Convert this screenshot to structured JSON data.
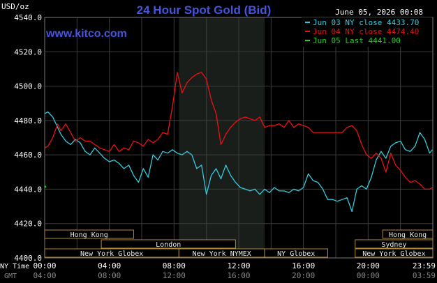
{
  "header": {
    "title": "24 Hour Spot Gold (Bid)",
    "date_stamp": "June 05, 2026 00:08",
    "unit": "USD/oz",
    "watermark": "www.kitco.com"
  },
  "footer": {
    "ny_label": "NY Time",
    "gmt_label": "GMT"
  },
  "colors": {
    "background": "#000000",
    "plot_background": "#000000",
    "night_band": "#1a1e1a",
    "grid": "#3c3c3c",
    "text": "#ffffff",
    "title": "#4455dd",
    "watermark": "#4455dd",
    "session_border": "#b08a3c",
    "session_text": "#e8e8e8",
    "gmt_text": "#888888",
    "series_jun03": "#33ccdd",
    "series_jun04": "#ee1111",
    "series_jun05": "#22cc22"
  },
  "chart_data": {
    "type": "line",
    "title": "24 Hour Spot Gold (Bid)",
    "ylabel": "USD/oz",
    "xlabel": "",
    "ylim": [
      4400,
      4540
    ],
    "yticks": [
      "4400.0",
      "4420.0",
      "4440.0",
      "4460.0",
      "4480.0",
      "4500.0",
      "4520.0",
      "4540.0"
    ],
    "xlim": [
      0,
      24
    ],
    "xticks": [
      {
        "hour": 0,
        "ny": "00:00",
        "gmt": "04:00"
      },
      {
        "hour": 4,
        "ny": "04:00",
        "gmt": "08:00"
      },
      {
        "hour": 8,
        "ny": "08:00",
        "gmt": "12:00"
      },
      {
        "hour": 12,
        "ny": "12:00",
        "gmt": "16:00"
      },
      {
        "hour": 16,
        "ny": "16:00",
        "gmt": "20:00"
      },
      {
        "hour": 20,
        "ny": "20:00",
        "gmt": "00:00"
      },
      {
        "hour": 23.98,
        "ny": "23:59",
        "gmt": "03:59"
      }
    ],
    "grid": true,
    "legend_position": "top-right",
    "shaded_range": [
      8.3,
      13.6
    ],
    "sessions": [
      {
        "name": "Hong Kong",
        "start": 0,
        "end": 5.5,
        "row": 0
      },
      {
        "name": "Hong Kong",
        "start": 20.9,
        "end": 24,
        "row": 0
      },
      {
        "name": "Sydney",
        "start": 19.2,
        "end": 24,
        "row": 1
      },
      {
        "name": "London",
        "start": 3.5,
        "end": 11.8,
        "row": 1
      },
      {
        "name": "New York Globex",
        "start": 0,
        "end": 8.3,
        "row": 2
      },
      {
        "name": "New York NYMEX",
        "start": 8.3,
        "end": 13.6,
        "row": 2
      },
      {
        "name": "NY Globex",
        "start": 13.6,
        "end": 17.5,
        "row": 2
      },
      {
        "name": "New York Globex",
        "start": 19.2,
        "end": 24,
        "row": 2
      }
    ],
    "series": [
      {
        "name": "Jun 03 NY close 4433.70",
        "color": "#33ccdd",
        "x": [
          0,
          0.2,
          0.5,
          0.8,
          1.0,
          1.3,
          1.6,
          1.9,
          2.2,
          2.5,
          2.8,
          3.1,
          3.4,
          3.7,
          4.0,
          4.3,
          4.6,
          4.9,
          5.2,
          5.5,
          5.8,
          6.1,
          6.4,
          6.7,
          7.0,
          7.3,
          7.6,
          7.9,
          8.2,
          8.5,
          8.8,
          9.1,
          9.4,
          9.7,
          10.0,
          10.3,
          10.6,
          10.9,
          11.2,
          11.5,
          11.8,
          12.1,
          12.4,
          12.7,
          13.0,
          13.3,
          13.6,
          13.9,
          14.2,
          14.5,
          14.8,
          15.1,
          15.4,
          15.7,
          16.0,
          16.3,
          16.6,
          16.9,
          17.2,
          17.5,
          17.8,
          18.1,
          18.4,
          18.7,
          19.0,
          19.3,
          19.6,
          19.9,
          20.2,
          20.5,
          20.8,
          21.1,
          21.4,
          21.7,
          22.0,
          22.3,
          22.6,
          22.9,
          23.2,
          23.5,
          23.8,
          23.98
        ],
        "y": [
          4484,
          4485,
          4482,
          4476,
          4472,
          4468,
          4466,
          4469,
          4467,
          4462,
          4460,
          4464,
          4461,
          4458,
          4456,
          4457,
          4455,
          4452,
          4454,
          4448,
          4444,
          4452,
          4447,
          4460,
          4457,
          4462,
          4461,
          4463,
          4461,
          4460,
          4462,
          4460,
          4452,
          4454,
          4437,
          4448,
          4452,
          4446,
          4454,
          4448,
          4444,
          4441,
          4440,
          4439,
          4440,
          4437,
          4440,
          4438,
          4441,
          4439,
          4439,
          4438,
          4440,
          4439,
          4441,
          4449,
          4445,
          4444,
          4440,
          4434,
          4434,
          4433,
          4434,
          4435,
          4427,
          4440,
          4442,
          4440,
          4447,
          4457,
          4462,
          4458,
          4465,
          4467,
          4468,
          4463,
          4462,
          4465,
          4473,
          4469,
          4461,
          4463
        ]
      },
      {
        "name": "Jun 04 NY close 4474.40",
        "color": "#ee1111",
        "x": [
          0,
          0.2,
          0.5,
          0.8,
          1.0,
          1.3,
          1.6,
          1.9,
          2.2,
          2.5,
          2.8,
          3.1,
          3.4,
          3.7,
          4.0,
          4.3,
          4.6,
          4.9,
          5.2,
          5.5,
          5.8,
          6.1,
          6.4,
          6.7,
          7.0,
          7.3,
          7.6,
          7.9,
          8.2,
          8.5,
          8.8,
          9.1,
          9.4,
          9.7,
          10.0,
          10.3,
          10.6,
          10.9,
          11.2,
          11.5,
          11.8,
          12.1,
          12.4,
          12.7,
          13.0,
          13.3,
          13.6,
          13.9,
          14.2,
          14.5,
          14.8,
          15.1,
          15.4,
          15.7,
          16.0,
          16.3,
          16.6,
          16.9,
          17.2,
          17.5,
          17.8,
          18.1,
          18.4,
          18.7,
          19.0,
          19.3,
          19.6,
          19.9,
          20.2,
          20.5,
          20.8,
          21.1,
          21.4,
          21.7,
          22.0,
          22.3,
          22.6,
          22.9,
          23.2,
          23.5,
          23.8,
          23.98
        ],
        "y": [
          4464,
          4465,
          4470,
          4478,
          4474,
          4478,
          4473,
          4468,
          4470,
          4468,
          4468,
          4466,
          4464,
          4463,
          4462,
          4466,
          4462,
          4464,
          4463,
          4468,
          4467,
          4465,
          4469,
          4467,
          4469,
          4473,
          4472,
          4488,
          4508,
          4496,
          4502,
          4505,
          4507,
          4508,
          4504,
          4492,
          4484,
          4466,
          4472,
          4476,
          4479,
          4481,
          4482,
          4481,
          4480,
          4482,
          4476,
          4477,
          4477,
          4478,
          4476,
          4480,
          4476,
          4478,
          4477,
          4476,
          4473,
          4473,
          4473,
          4473,
          4473,
          4473,
          4473,
          4476,
          4477,
          4474,
          4466,
          4460,
          4458,
          4461,
          4458,
          4450,
          4461,
          4454,
          4451,
          4447,
          4444,
          4445,
          4443,
          4440,
          4440,
          4441
        ]
      },
      {
        "name": "Jun 05 Last 4441.00",
        "color": "#22cc22",
        "x": [
          0.0,
          0.08
        ],
        "y": [
          4442,
          4441
        ]
      }
    ]
  }
}
